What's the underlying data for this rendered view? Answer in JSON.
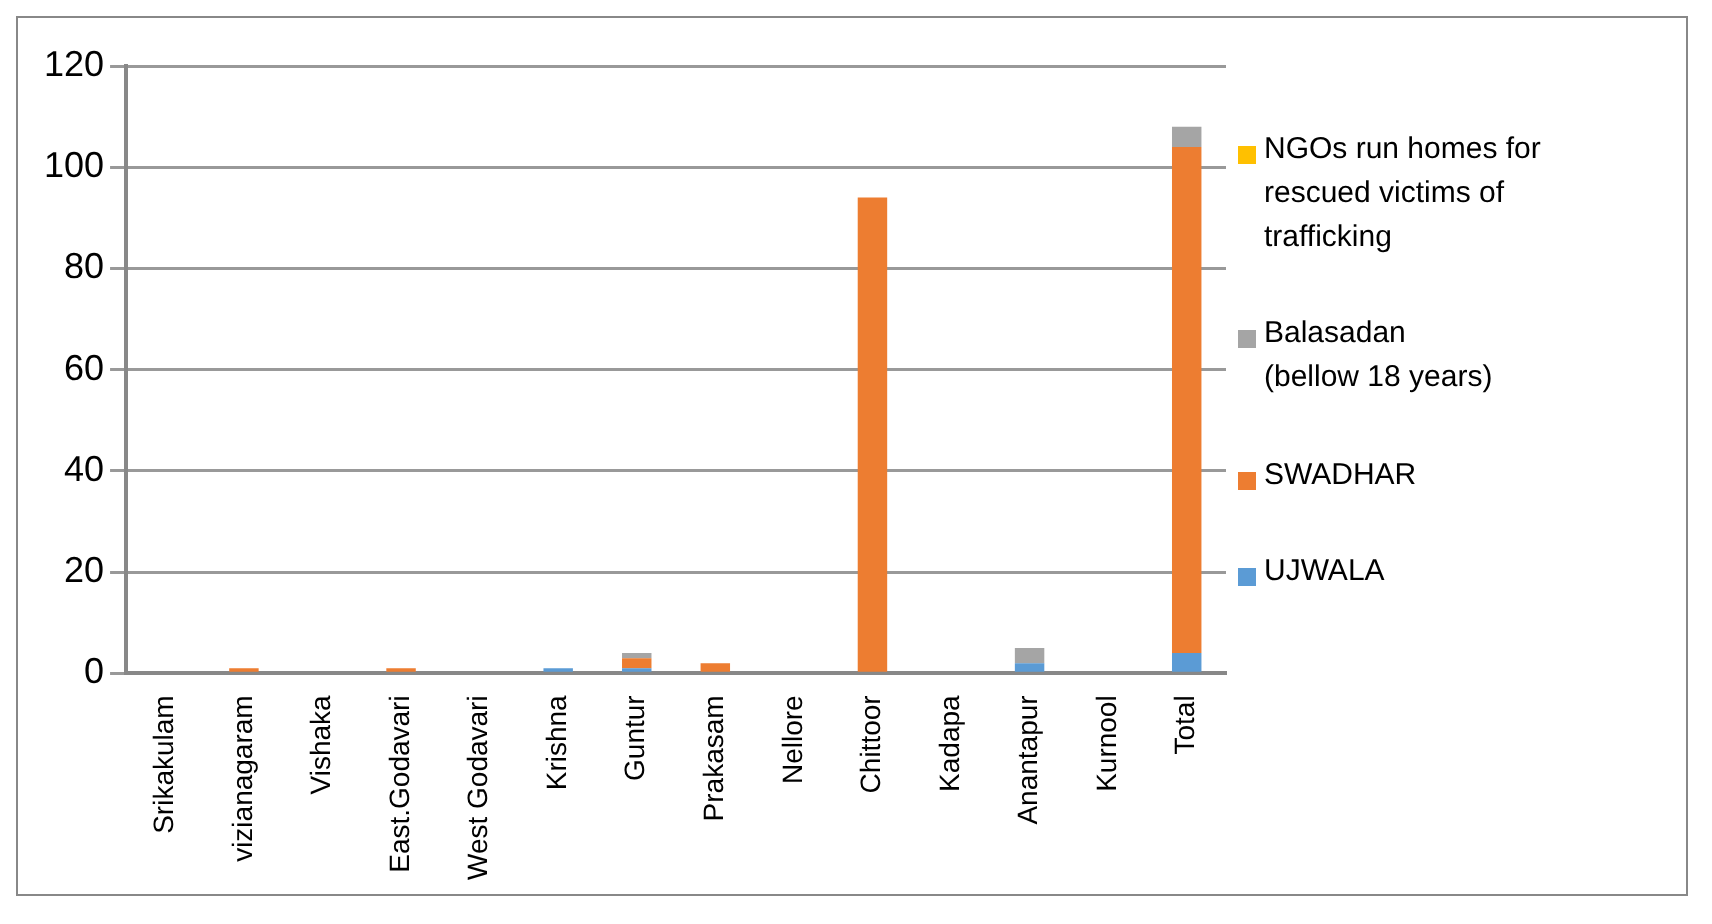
{
  "chart_data": {
    "type": "bar",
    "stacked": true,
    "categories": [
      "Srikakulam",
      "vizianagaram",
      "Vishaka",
      "East.Godavari",
      "West Godavari",
      "Krishna",
      "Guntur",
      "Prakasam",
      "Nellore",
      "Chittoor",
      "Kadapa",
      "Anantapur",
      "Kurnool",
      "Total"
    ],
    "series": [
      {
        "name": "UJWALA",
        "color": "#5b9bd5",
        "values": [
          0,
          0,
          0,
          0,
          0,
          1,
          1,
          0,
          0,
          0,
          0,
          2,
          0,
          4
        ]
      },
      {
        "name": "SWADHAR",
        "color": "#ed7d31",
        "values": [
          0,
          1,
          0,
          1,
          0,
          0,
          2,
          2,
          0,
          94,
          0,
          0,
          0,
          100
        ]
      },
      {
        "name": "Balasadan\n(bellow 18 years)",
        "color": "#a5a5a5",
        "values": [
          0,
          0,
          0,
          0,
          0,
          0,
          1,
          0,
          0,
          0,
          0,
          3,
          0,
          4
        ]
      },
      {
        "name": "NGOs run homes for rescued victims of trafficking",
        "color": "#ffc000",
        "values": [
          0,
          0,
          0,
          0,
          0,
          0,
          0,
          0,
          0,
          0,
          0,
          0,
          0,
          0
        ]
      }
    ],
    "ylim": [
      0,
      120
    ],
    "yticks": [
      0,
      20,
      40,
      60,
      80,
      100,
      120
    ],
    "grid": "y",
    "legend": "right"
  }
}
